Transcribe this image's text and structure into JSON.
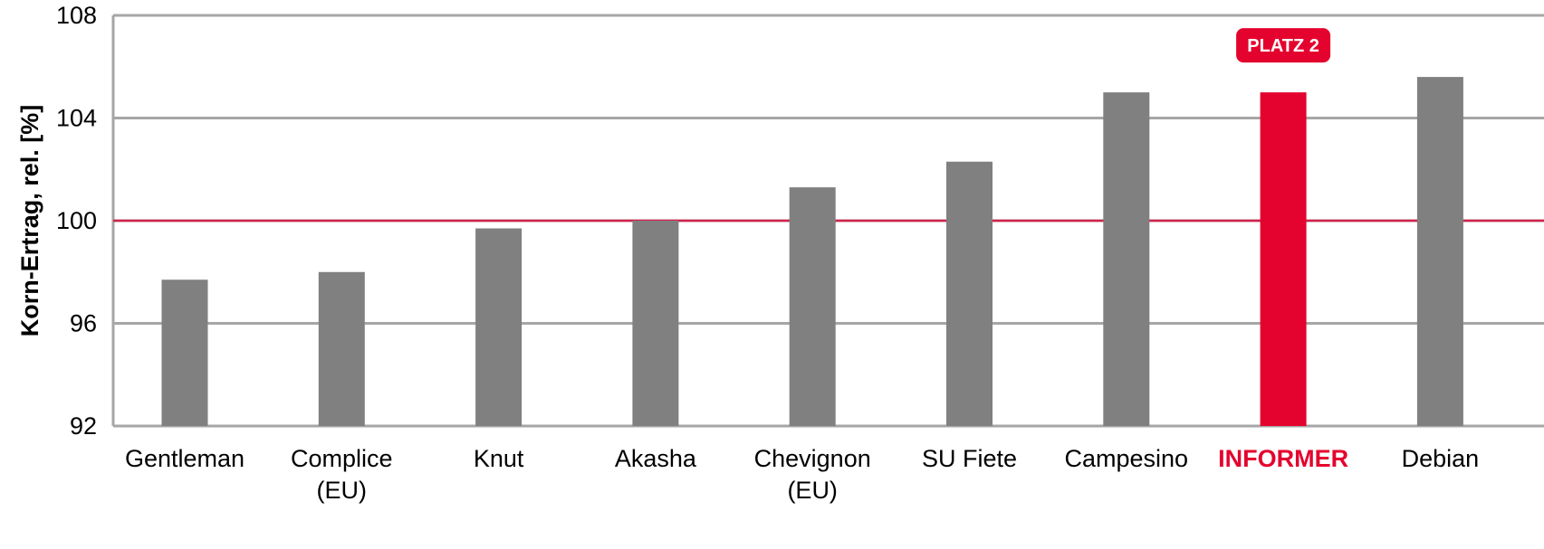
{
  "chart_data": {
    "type": "bar",
    "ylabel": "Korn-Ertrag, rel. [%]",
    "ylim": [
      92,
      108
    ],
    "yticks": [
      92,
      96,
      100,
      104,
      108
    ],
    "grid": true,
    "reference_value": 100,
    "categories": [
      [
        "Gentleman"
      ],
      [
        "Complice",
        "(EU)"
      ],
      [
        "Knut"
      ],
      [
        "Akasha"
      ],
      [
        "Chevignon",
        "(EU)"
      ],
      [
        "SU Fiete"
      ],
      [
        "Campesino"
      ],
      [
        "INFORMER"
      ],
      [
        "Debian"
      ]
    ],
    "values": [
      97.7,
      98.0,
      99.7,
      100.0,
      101.3,
      102.3,
      105.0,
      105.0,
      105.6
    ],
    "highlight_index": 7,
    "badge": "PLATZ 2",
    "colors": {
      "bar": "#808080",
      "highlight": "#e4032e",
      "reference_line": "#d2224d",
      "grid": "#a6a6a6",
      "frame": "#a6a6a6"
    }
  }
}
